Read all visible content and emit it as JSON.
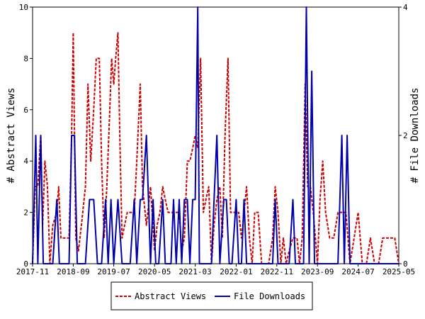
{
  "chart_data": {
    "type": "line",
    "ylabel_left": "# Abstract Views",
    "ylabel_right": "# File Downloads",
    "x_ticks": [
      "2017-11",
      "2018-09",
      "2019-07",
      "2020-05",
      "2021-03",
      "2022-01",
      "2022-11",
      "2023-09",
      "2024-07",
      "2025-05"
    ],
    "x_range": [
      "2017-11",
      "2025-05"
    ],
    "ylim_left": [
      0,
      10
    ],
    "ylim_right": [
      0,
      4
    ],
    "y_ticks_left": [
      "0",
      "2",
      "4",
      "6",
      "8",
      "10"
    ],
    "y_ticks_right": [
      "0",
      "2",
      "4"
    ],
    "grid": false,
    "legend_position": "bottom",
    "series": [
      {
        "name": "Abstract Views",
        "axis": "left",
        "color": "#cc0000",
        "style": "dashed",
        "points": [
          [
            "2017-11-01",
            0
          ],
          [
            "2017-11-20",
            3
          ],
          [
            "2017-12-10",
            3
          ],
          [
            "2018-01-01",
            5
          ],
          [
            "2018-01-15",
            1.5
          ],
          [
            "2018-02-01",
            4
          ],
          [
            "2018-02-20",
            3
          ],
          [
            "2018-03-10",
            0
          ],
          [
            "2018-04-01",
            1.5
          ],
          [
            "2018-05-01",
            2
          ],
          [
            "2018-05-15",
            3
          ],
          [
            "2018-06-01",
            1
          ],
          [
            "2018-07-01",
            1
          ],
          [
            "2018-08-01",
            1
          ],
          [
            "2018-08-20",
            5
          ],
          [
            "2018-09-01",
            9
          ],
          [
            "2018-09-20",
            1
          ],
          [
            "2018-10-10",
            0.5
          ],
          [
            "2018-11-01",
            1.5
          ],
          [
            "2018-12-01",
            3
          ],
          [
            "2018-12-20",
            7
          ],
          [
            "2019-01-10",
            4
          ],
          [
            "2019-02-01",
            6
          ],
          [
            "2019-02-20",
            8
          ],
          [
            "2019-03-15",
            8
          ],
          [
            "2019-04-01",
            4
          ],
          [
            "2019-04-20",
            1
          ],
          [
            "2019-05-10",
            3
          ],
          [
            "2019-06-01",
            6
          ],
          [
            "2019-06-15",
            8
          ],
          [
            "2019-07-01",
            7
          ],
          [
            "2019-07-15",
            8
          ],
          [
            "2019-08-01",
            9
          ],
          [
            "2019-08-15",
            5
          ],
          [
            "2019-09-01",
            1
          ],
          [
            "2019-09-20",
            1.5
          ],
          [
            "2019-10-10",
            2
          ],
          [
            "2019-11-01",
            2
          ],
          [
            "2019-12-01",
            2
          ],
          [
            "2019-12-20",
            4
          ],
          [
            "2020-01-15",
            7
          ],
          [
            "2020-02-01",
            3
          ],
          [
            "2020-03-01",
            1.5
          ],
          [
            "2020-04-01",
            3
          ],
          [
            "2020-05-01",
            0.5
          ],
          [
            "2020-05-20",
            1.5
          ],
          [
            "2020-06-10",
            2
          ],
          [
            "2020-07-01",
            3
          ],
          [
            "2020-07-20",
            2.5
          ],
          [
            "2020-08-10",
            2
          ],
          [
            "2020-09-01",
            2
          ],
          [
            "2020-10-01",
            2
          ],
          [
            "2020-11-01",
            2
          ],
          [
            "2020-11-20",
            0.5
          ],
          [
            "2020-12-10",
            1
          ],
          [
            "2021-01-01",
            4
          ],
          [
            "2021-01-20",
            4
          ],
          [
            "2021-02-10",
            4.5
          ],
          [
            "2021-03-01",
            5
          ],
          [
            "2021-03-20",
            4.5
          ],
          [
            "2021-04-10",
            8
          ],
          [
            "2021-05-01",
            2
          ],
          [
            "2021-05-20",
            2.5
          ],
          [
            "2021-06-10",
            3
          ],
          [
            "2021-07-01",
            0
          ],
          [
            "2021-07-20",
            1.5
          ],
          [
            "2021-08-10",
            2.5
          ],
          [
            "2021-09-01",
            3
          ],
          [
            "2021-09-20",
            1
          ],
          [
            "2021-10-10",
            5
          ],
          [
            "2021-11-01",
            8
          ],
          [
            "2021-11-20",
            2
          ],
          [
            "2021-12-10",
            2
          ],
          [
            "2022-01-01",
            2
          ],
          [
            "2022-01-20",
            2
          ],
          [
            "2022-02-10",
            1
          ],
          [
            "2022-03-01",
            2
          ],
          [
            "2022-03-20",
            3
          ],
          [
            "2022-04-10",
            1
          ],
          [
            "2022-05-01",
            0
          ],
          [
            "2022-05-20",
            2
          ],
          [
            "2022-06-15",
            2
          ],
          [
            "2022-07-10",
            0
          ],
          [
            "2022-08-01",
            0
          ],
          [
            "2022-09-01",
            0
          ],
          [
            "2022-10-01",
            1
          ],
          [
            "2022-10-20",
            3
          ],
          [
            "2022-11-10",
            2
          ],
          [
            "2022-12-01",
            0
          ],
          [
            "2022-12-20",
            1
          ],
          [
            "2023-01-10",
            0
          ],
          [
            "2023-02-01",
            0.5
          ],
          [
            "2023-03-01",
            1
          ],
          [
            "2023-04-01",
            1
          ],
          [
            "2023-04-20",
            0
          ],
          [
            "2023-05-10",
            1
          ],
          [
            "2023-06-01",
            7
          ],
          [
            "2023-06-20",
            3
          ],
          [
            "2023-07-10",
            3
          ],
          [
            "2023-08-01",
            2
          ],
          [
            "2023-09-01",
            0
          ],
          [
            "2023-09-20",
            2.5
          ],
          [
            "2023-10-10",
            4
          ],
          [
            "2023-11-01",
            2
          ],
          [
            "2023-12-01",
            1
          ],
          [
            "2024-01-01",
            1
          ],
          [
            "2024-02-01",
            2
          ],
          [
            "2024-03-01",
            2
          ],
          [
            "2024-04-01",
            2
          ],
          [
            "2024-05-01",
            0
          ],
          [
            "2024-06-01",
            1
          ],
          [
            "2024-07-01",
            2
          ],
          [
            "2024-08-01",
            0
          ],
          [
            "2024-09-01",
            0
          ],
          [
            "2024-10-01",
            1
          ],
          [
            "2024-11-01",
            0
          ],
          [
            "2024-12-01",
            0
          ],
          [
            "2025-01-01",
            1
          ],
          [
            "2025-02-01",
            1
          ],
          [
            "2025-03-01",
            1
          ],
          [
            "2025-04-01",
            1
          ],
          [
            "2025-05-01",
            0
          ]
        ]
      },
      {
        "name": "File Downloads",
        "axis": "right",
        "color": "#0000aa",
        "style": "solid",
        "points": [
          [
            "2017-11-01",
            0
          ],
          [
            "2017-11-25",
            2
          ],
          [
            "2017-12-10",
            0
          ],
          [
            "2018-01-01",
            2
          ],
          [
            "2018-01-20",
            0
          ],
          [
            "2018-02-10",
            0
          ],
          [
            "2018-03-01",
            0
          ],
          [
            "2018-04-01",
            0
          ],
          [
            "2018-05-01",
            1
          ],
          [
            "2018-05-20",
            0
          ],
          [
            "2018-06-10",
            0
          ],
          [
            "2018-07-01",
            0
          ],
          [
            "2018-08-01",
            0
          ],
          [
            "2018-08-20",
            2
          ],
          [
            "2018-09-10",
            2
          ],
          [
            "2018-10-01",
            0
          ],
          [
            "2018-11-01",
            0
          ],
          [
            "2018-12-01",
            0
          ],
          [
            "2019-01-01",
            1
          ],
          [
            "2019-02-01",
            1
          ],
          [
            "2019-03-01",
            0
          ],
          [
            "2019-04-01",
            0
          ],
          [
            "2019-05-01",
            1
          ],
          [
            "2019-05-20",
            0
          ],
          [
            "2019-06-10",
            1
          ],
          [
            "2019-07-01",
            0
          ],
          [
            "2019-08-01",
            1
          ],
          [
            "2019-09-01",
            0
          ],
          [
            "2019-10-01",
            0
          ],
          [
            "2019-11-01",
            0
          ],
          [
            "2019-12-01",
            1
          ],
          [
            "2019-12-20",
            0
          ],
          [
            "2020-01-15",
            1
          ],
          [
            "2020-02-01",
            1
          ],
          [
            "2020-03-01",
            2
          ],
          [
            "2020-04-01",
            0
          ],
          [
            "2020-04-20",
            1
          ],
          [
            "2020-05-10",
            0
          ],
          [
            "2020-06-01",
            0
          ],
          [
            "2020-07-01",
            1
          ],
          [
            "2020-07-20",
            0
          ],
          [
            "2020-08-10",
            0
          ],
          [
            "2020-09-01",
            0
          ],
          [
            "2020-09-20",
            1
          ],
          [
            "2020-10-10",
            0
          ],
          [
            "2020-11-01",
            1
          ],
          [
            "2020-11-20",
            0
          ],
          [
            "2020-12-10",
            1
          ],
          [
            "2021-01-01",
            1
          ],
          [
            "2021-01-20",
            0
          ],
          [
            "2021-02-10",
            1
          ],
          [
            "2021-03-01",
            1
          ],
          [
            "2021-03-20",
            4
          ],
          [
            "2021-04-01",
            0
          ],
          [
            "2021-05-01",
            0
          ],
          [
            "2021-06-01",
            0
          ],
          [
            "2021-07-01",
            0
          ],
          [
            "2021-07-20",
            1
          ],
          [
            "2021-08-10",
            2
          ],
          [
            "2021-09-01",
            0
          ],
          [
            "2021-10-01",
            1
          ],
          [
            "2021-10-20",
            1
          ],
          [
            "2021-11-10",
            0
          ],
          [
            "2021-12-01",
            0
          ],
          [
            "2022-01-01",
            1
          ],
          [
            "2022-01-20",
            0
          ],
          [
            "2022-02-10",
            0
          ],
          [
            "2022-03-01",
            1
          ],
          [
            "2022-03-20",
            0
          ],
          [
            "2022-04-10",
            0
          ],
          [
            "2022-05-01",
            0
          ],
          [
            "2022-06-01",
            0
          ],
          [
            "2022-07-01",
            0
          ],
          [
            "2022-08-01",
            0
          ],
          [
            "2022-09-01",
            0
          ],
          [
            "2022-10-01",
            0
          ],
          [
            "2022-10-20",
            1
          ],
          [
            "2022-11-10",
            0
          ],
          [
            "2022-12-01",
            0
          ],
          [
            "2023-01-01",
            0
          ],
          [
            "2023-02-01",
            0
          ],
          [
            "2023-03-01",
            1
          ],
          [
            "2023-03-20",
            0
          ],
          [
            "2023-04-10",
            0
          ],
          [
            "2023-05-01",
            0
          ],
          [
            "2023-05-20",
            0
          ],
          [
            "2023-06-10",
            4
          ],
          [
            "2023-07-01",
            0
          ],
          [
            "2023-07-20",
            3
          ],
          [
            "2023-08-10",
            0
          ],
          [
            "2023-09-01",
            0
          ],
          [
            "2023-10-01",
            0
          ],
          [
            "2023-11-01",
            0
          ],
          [
            "2023-12-01",
            0
          ],
          [
            "2024-01-01",
            0
          ],
          [
            "2024-02-01",
            0
          ],
          [
            "2024-03-01",
            2
          ],
          [
            "2024-03-20",
            0
          ],
          [
            "2024-04-10",
            2
          ],
          [
            "2024-05-01",
            0
          ],
          [
            "2024-06-01",
            0
          ],
          [
            "2024-07-01",
            0
          ],
          [
            "2024-08-01",
            0
          ],
          [
            "2024-09-01",
            0
          ],
          [
            "2024-10-01",
            0
          ],
          [
            "2024-11-01",
            0
          ],
          [
            "2024-12-01",
            0
          ],
          [
            "2025-01-01",
            0
          ],
          [
            "2025-02-01",
            0
          ],
          [
            "2025-03-01",
            0
          ],
          [
            "2025-04-01",
            0
          ],
          [
            "2025-05-01",
            0
          ]
        ]
      }
    ]
  }
}
